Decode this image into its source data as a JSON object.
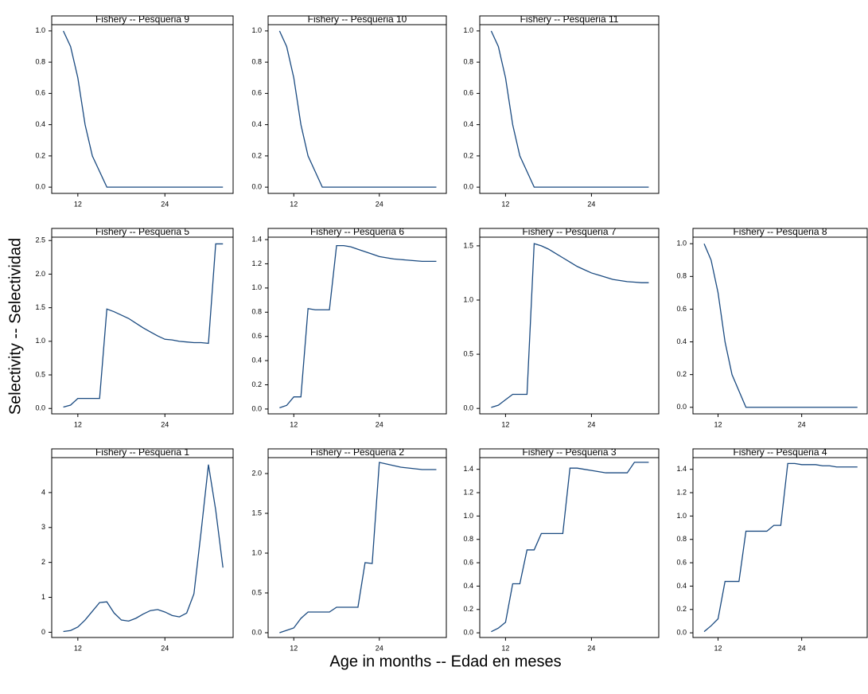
{
  "xlabel": "Age in months -- Edad en meses",
  "ylabel": "Selectivity -- Selectividad",
  "chart_data": [
    {
      "type": "line",
      "title": "Fishery -- Pesqueria  1",
      "color": "#1a4a80",
      "x": [
        10,
        11,
        12,
        13,
        14,
        15,
        16,
        17,
        18,
        19,
        20,
        21,
        22,
        23,
        24,
        25,
        26,
        27,
        28,
        29,
        30,
        31,
        32
      ],
      "values": [
        0.02,
        0.05,
        0.15,
        0.35,
        0.6,
        0.85,
        0.87,
        0.55,
        0.35,
        0.32,
        0.4,
        0.52,
        0.62,
        0.65,
        0.58,
        0.48,
        0.44,
        0.55,
        1.1,
        2.9,
        4.8,
        3.5,
        1.85
      ],
      "xlim": [
        8.4,
        33.4
      ],
      "xticks": [
        12,
        24
      ],
      "ylim": [
        -0.15,
        5
      ],
      "yticks": [
        0,
        1,
        2,
        3,
        4
      ]
    },
    {
      "type": "line",
      "title": "Fishery -- Pesqueria  2",
      "color": "#1a4a80",
      "x": [
        10,
        11,
        12,
        13,
        14,
        15,
        16,
        17,
        18,
        19,
        20,
        21,
        22,
        23,
        24,
        25,
        26,
        27,
        28,
        29,
        30,
        31,
        32
      ],
      "values": [
        0,
        0.03,
        0.06,
        0.18,
        0.26,
        0.26,
        0.26,
        0.26,
        0.32,
        0.32,
        0.32,
        0.32,
        0.88,
        0.87,
        2.14,
        2.12,
        2.1,
        2.08,
        2.07,
        2.06,
        2.05,
        2.05,
        2.05
      ],
      "xlim": [
        8.4,
        33.4
      ],
      "xticks": [
        12,
        24
      ],
      "ylim": [
        -0.06,
        2.2
      ],
      "yticks": [
        {
          "value": 0,
          "label": "0.0"
        },
        0.5,
        {
          "value": 1,
          "label": "1.0"
        },
        1.5,
        {
          "value": 2,
          "label": "2.0"
        }
      ]
    },
    {
      "type": "line",
      "title": "Fishery -- Pesqueria  3",
      "color": "#1a4a80",
      "x": [
        10,
        11,
        12,
        13,
        14,
        15,
        16,
        17,
        18,
        19,
        20,
        21,
        22,
        23,
        24,
        25,
        26,
        27,
        28,
        29,
        30,
        31,
        32
      ],
      "values": [
        0.01,
        0.04,
        0.09,
        0.42,
        0.42,
        0.71,
        0.71,
        0.85,
        0.85,
        0.85,
        0.85,
        1.41,
        1.41,
        1.4,
        1.39,
        1.38,
        1.37,
        1.37,
        1.37,
        1.37,
        1.46,
        1.46,
        1.46
      ],
      "xlim": [
        8.4,
        33.4
      ],
      "xticks": [
        12,
        24
      ],
      "ylim": [
        -0.04,
        1.5
      ],
      "yticks": [
        {
          "value": 0,
          "label": "0.0"
        },
        0.2,
        0.4,
        0.6,
        0.8,
        {
          "value": 1,
          "label": "1.0"
        },
        1.2,
        1.4
      ]
    },
    {
      "type": "line",
      "title": "Fishery -- Pesqueria  4",
      "color": "#1a4a80",
      "x": [
        10,
        11,
        12,
        13,
        14,
        15,
        16,
        17,
        18,
        19,
        20,
        21,
        22,
        23,
        24,
        25,
        26,
        27,
        28,
        29,
        30,
        31,
        32
      ],
      "values": [
        0.01,
        0.06,
        0.12,
        0.44,
        0.44,
        0.44,
        0.87,
        0.87,
        0.87,
        0.87,
        0.92,
        0.92,
        1.45,
        1.45,
        1.44,
        1.44,
        1.44,
        1.43,
        1.43,
        1.42,
        1.42,
        1.42,
        1.42
      ],
      "xlim": [
        8.4,
        33.4
      ],
      "xticks": [
        12,
        24
      ],
      "ylim": [
        -0.04,
        1.5
      ],
      "yticks": [
        {
          "value": 0,
          "label": "0.0"
        },
        0.2,
        0.4,
        0.6,
        0.8,
        {
          "value": 1,
          "label": "1.0"
        },
        1.2,
        1.4
      ]
    },
    {
      "type": "line",
      "title": "Fishery -- Pesqueria  5",
      "color": "#1a4a80",
      "x": [
        10,
        11,
        12,
        13,
        14,
        15,
        16,
        17,
        18,
        19,
        20,
        21,
        22,
        23,
        24,
        25,
        26,
        27,
        28,
        29,
        30,
        31,
        32
      ],
      "values": [
        0.02,
        0.05,
        0.15,
        0.15,
        0.15,
        0.15,
        1.48,
        1.44,
        1.39,
        1.34,
        1.27,
        1.2,
        1.14,
        1.08,
        1.03,
        1.02,
        1.0,
        0.99,
        0.98,
        0.98,
        0.97,
        2.45,
        2.45
      ],
      "xlim": [
        8.4,
        33.4
      ],
      "xticks": [
        12,
        24
      ],
      "ylim": [
        -0.08,
        2.55
      ],
      "yticks": [
        {
          "value": 0,
          "label": "0.0"
        },
        0.5,
        {
          "value": 1,
          "label": "1.0"
        },
        1.5,
        {
          "value": 2,
          "label": "2.0"
        },
        2.5
      ]
    },
    {
      "type": "line",
      "title": "Fishery -- Pesqueria  6",
      "color": "#1a4a80",
      "x": [
        10,
        11,
        12,
        13,
        14,
        15,
        16,
        17,
        18,
        19,
        20,
        21,
        22,
        23,
        24,
        25,
        26,
        27,
        28,
        29,
        30,
        31,
        32
      ],
      "values": [
        0.01,
        0.03,
        0.1,
        0.1,
        0.83,
        0.82,
        0.82,
        0.82,
        1.35,
        1.35,
        1.34,
        1.32,
        1.3,
        1.28,
        1.26,
        1.25,
        1.24,
        1.235,
        1.23,
        1.225,
        1.22,
        1.22,
        1.22
      ],
      "xlim": [
        8.4,
        33.4
      ],
      "xticks": [
        12,
        24
      ],
      "ylim": [
        -0.04,
        1.42
      ],
      "yticks": [
        {
          "value": 0,
          "label": "0.0"
        },
        0.2,
        0.4,
        0.6,
        0.8,
        {
          "value": 1,
          "label": "1.0"
        },
        1.2,
        1.4
      ]
    },
    {
      "type": "line",
      "title": "Fishery -- Pesqueria  7",
      "color": "#1a4a80",
      "x": [
        10,
        11,
        12,
        13,
        14,
        15,
        16,
        17,
        18,
        19,
        20,
        21,
        22,
        23,
        24,
        25,
        26,
        27,
        28,
        29,
        30,
        31,
        32
      ],
      "values": [
        0.01,
        0.03,
        0.08,
        0.13,
        0.13,
        0.13,
        1.52,
        1.5,
        1.47,
        1.43,
        1.39,
        1.35,
        1.31,
        1.28,
        1.25,
        1.23,
        1.21,
        1.19,
        1.18,
        1.17,
        1.165,
        1.16,
        1.16
      ],
      "xlim": [
        8.4,
        33.4
      ],
      "xticks": [
        12,
        24
      ],
      "ylim": [
        -0.05,
        1.58
      ],
      "yticks": [
        {
          "value": 0,
          "label": "0.0"
        },
        0.5,
        {
          "value": 1,
          "label": "1.0"
        },
        1.5
      ]
    },
    {
      "type": "line",
      "title": "Fishery -- Pesqueria  8",
      "color": "#1a4a80",
      "x": [
        10,
        11,
        12,
        13,
        14,
        15,
        16,
        17,
        18,
        19,
        20,
        21,
        22,
        23,
        24,
        25,
        26,
        27,
        28,
        29,
        30,
        31,
        32
      ],
      "values": [
        1,
        0.9,
        0.7,
        0.4,
        0.2,
        0.1,
        0,
        0,
        0,
        0,
        0,
        0,
        0,
        0,
        0,
        0,
        0,
        0,
        0,
        0,
        0,
        0,
        0
      ],
      "xlim": [
        8.4,
        33.4
      ],
      "xticks": [
        12,
        24
      ],
      "ylim": [
        -0.04,
        1.04
      ],
      "yticks": [
        {
          "value": 0,
          "label": "0.0"
        },
        0.2,
        0.4,
        0.6,
        0.8,
        {
          "value": 1,
          "label": "1.0"
        }
      ]
    },
    {
      "type": "line",
      "title": "Fishery -- Pesqueria  9",
      "color": "#1a4a80",
      "x": [
        10,
        11,
        12,
        13,
        14,
        15,
        16,
        17,
        18,
        19,
        20,
        21,
        22,
        23,
        24,
        25,
        26,
        27,
        28,
        29,
        30,
        31,
        32
      ],
      "values": [
        1,
        0.9,
        0.7,
        0.4,
        0.2,
        0.1,
        0,
        0,
        0,
        0,
        0,
        0,
        0,
        0,
        0,
        0,
        0,
        0,
        0,
        0,
        0,
        0,
        0
      ],
      "xlim": [
        8.4,
        33.4
      ],
      "xticks": [
        12,
        24
      ],
      "ylim": [
        -0.04,
        1.04
      ],
      "yticks": [
        {
          "value": 0,
          "label": "0.0"
        },
        0.2,
        0.4,
        0.6,
        0.8,
        {
          "value": 1,
          "label": "1.0"
        }
      ]
    },
    {
      "type": "line",
      "title": "Fishery -- Pesqueria  10",
      "color": "#1a4a80",
      "x": [
        10,
        11,
        12,
        13,
        14,
        15,
        16,
        17,
        18,
        19,
        20,
        21,
        22,
        23,
        24,
        25,
        26,
        27,
        28,
        29,
        30,
        31,
        32
      ],
      "values": [
        1,
        0.9,
        0.7,
        0.4,
        0.2,
        0.1,
        0,
        0,
        0,
        0,
        0,
        0,
        0,
        0,
        0,
        0,
        0,
        0,
        0,
        0,
        0,
        0,
        0
      ],
      "xlim": [
        8.4,
        33.4
      ],
      "xticks": [
        12,
        24
      ],
      "ylim": [
        -0.04,
        1.04
      ],
      "yticks": [
        {
          "value": 0,
          "label": "0.0"
        },
        0.2,
        0.4,
        0.6,
        0.8,
        {
          "value": 1,
          "label": "1.0"
        }
      ]
    },
    {
      "type": "line",
      "title": "Fishery -- Pesqueria  11",
      "color": "#1a4a80",
      "x": [
        10,
        11,
        12,
        13,
        14,
        15,
        16,
        17,
        18,
        19,
        20,
        21,
        22,
        23,
        24,
        25,
        26,
        27,
        28,
        29,
        30,
        31,
        32
      ],
      "values": [
        1,
        0.9,
        0.7,
        0.4,
        0.2,
        0.1,
        0,
        0,
        0,
        0,
        0,
        0,
        0,
        0,
        0,
        0,
        0,
        0,
        0,
        0,
        0,
        0,
        0
      ],
      "xlim": [
        8.4,
        33.4
      ],
      "xticks": [
        12,
        24
      ],
      "ylim": [
        -0.04,
        1.04
      ],
      "yticks": [
        {
          "value": 0,
          "label": "0.0"
        },
        0.2,
        0.4,
        0.6,
        0.8,
        {
          "value": 1,
          "label": "1.0"
        }
      ]
    }
  ]
}
